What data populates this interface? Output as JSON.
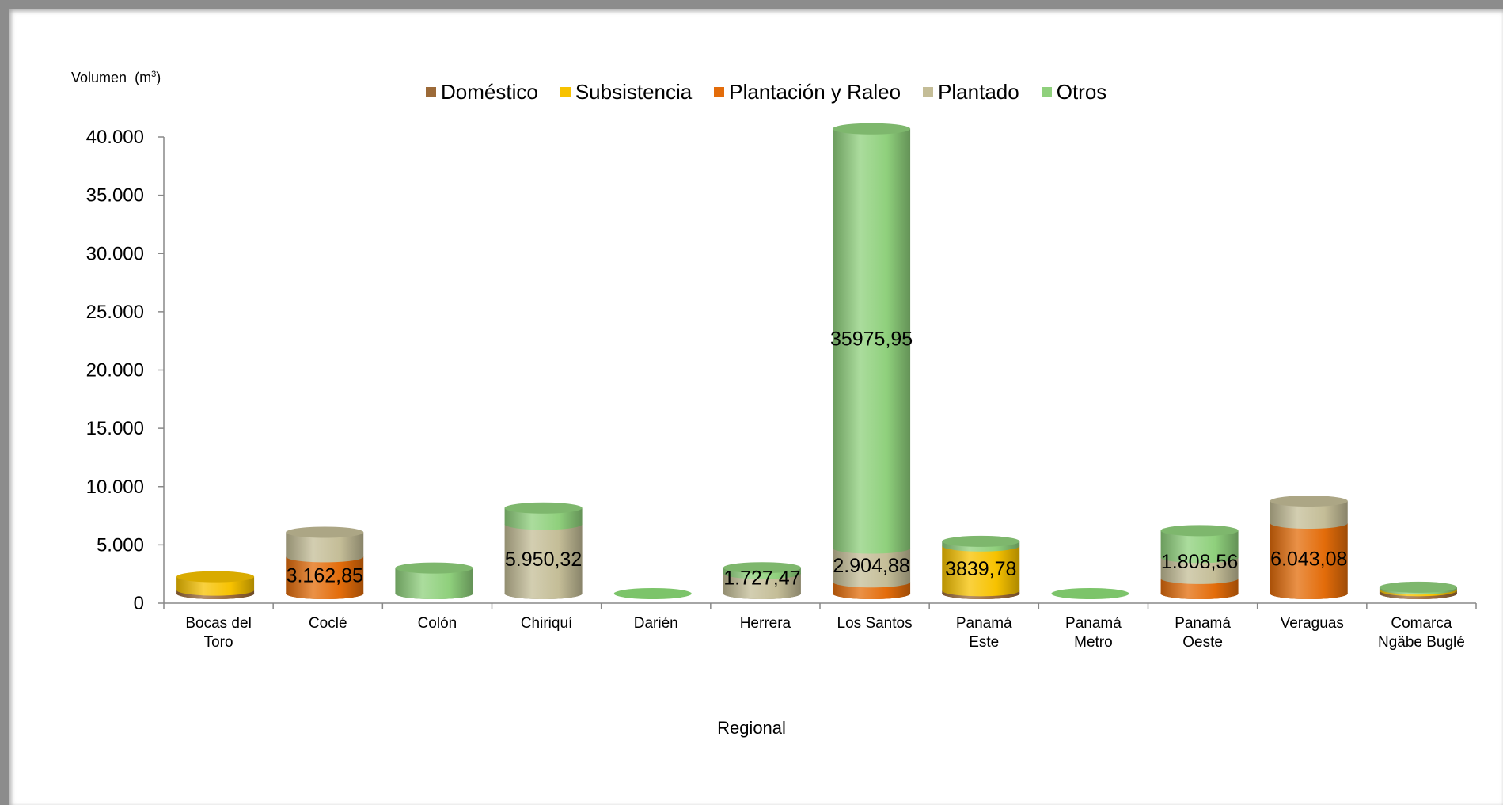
{
  "chart_data": {
    "type": "bar",
    "subtype": "stacked-3d-cylinder",
    "ylabel": "Volumen",
    "ylabel_unit": "(m",
    "ylabel_unit_sup": "3",
    "ylabel_unit_close": ")",
    "xlabel": "Regional",
    "ylim": [
      0,
      40000
    ],
    "yticks": [
      0,
      5000,
      10000,
      15000,
      20000,
      25000,
      30000,
      35000,
      40000
    ],
    "ytick_labels": [
      "0",
      "5.000",
      "10.000",
      "15.000",
      "20.000",
      "25.000",
      "30.000",
      "35.000",
      "40.000"
    ],
    "legend_position": "top",
    "categories": [
      [
        "Bocas del",
        "Toro"
      ],
      [
        "Coclé"
      ],
      [
        "Colón"
      ],
      [
        "Chiriquí"
      ],
      [
        "Darién"
      ],
      [
        "Herrera"
      ],
      [
        "Los Santos"
      ],
      [
        "Panamá",
        "Este"
      ],
      [
        "Panamá",
        "Metro"
      ],
      [
        "Panamá",
        "Oeste"
      ],
      [
        "Veraguas"
      ],
      [
        "Comarca",
        "Ngäbe Buglé"
      ]
    ],
    "series": [
      {
        "name": "Doméstico",
        "color": "#9c6a38",
        "values": [
          300,
          0,
          0,
          0,
          0,
          0,
          0,
          250,
          0,
          0,
          0,
          250
        ]
      },
      {
        "name": "Subsistencia",
        "color": "#f7c200",
        "values": [
          1150,
          0,
          0,
          0,
          0,
          0,
          0,
          3839.78,
          0,
          0,
          0,
          150
        ]
      },
      {
        "name": "Plantación y Raleo",
        "color": "#e36c0a",
        "values": [
          0,
          3162.85,
          0,
          0,
          0,
          0,
          1000,
          0,
          0,
          1300,
          6043.08,
          0
        ]
      },
      {
        "name": "Plantado",
        "color": "#c4bd97",
        "values": [
          0,
          2100,
          0,
          5950.32,
          0,
          1727.47,
          2904.88,
          0,
          0,
          1808.56,
          1900,
          0
        ]
      },
      {
        "name": "Otros",
        "color": "#8fd07c",
        "values": [
          0,
          0,
          2200,
          1400,
          0,
          500,
          35975.95,
          400,
          0,
          2300,
          0,
          150
        ]
      }
    ],
    "data_labels": [
      {
        "category": 1,
        "series": 2,
        "text": "3.162,85"
      },
      {
        "category": 3,
        "series": 3,
        "text": "5.950,32"
      },
      {
        "category": 5,
        "series": 3,
        "text": "1.727,47"
      },
      {
        "category": 6,
        "series": 4,
        "text": "35975,95"
      },
      {
        "category": 6,
        "series": 3,
        "text": "2.904,88"
      },
      {
        "category": 7,
        "series": 1,
        "text": "3839,78"
      },
      {
        "category": 9,
        "series": 3,
        "text": "1.808,56"
      },
      {
        "category": 10,
        "series": 2,
        "text": "6.043,08"
      }
    ]
  }
}
